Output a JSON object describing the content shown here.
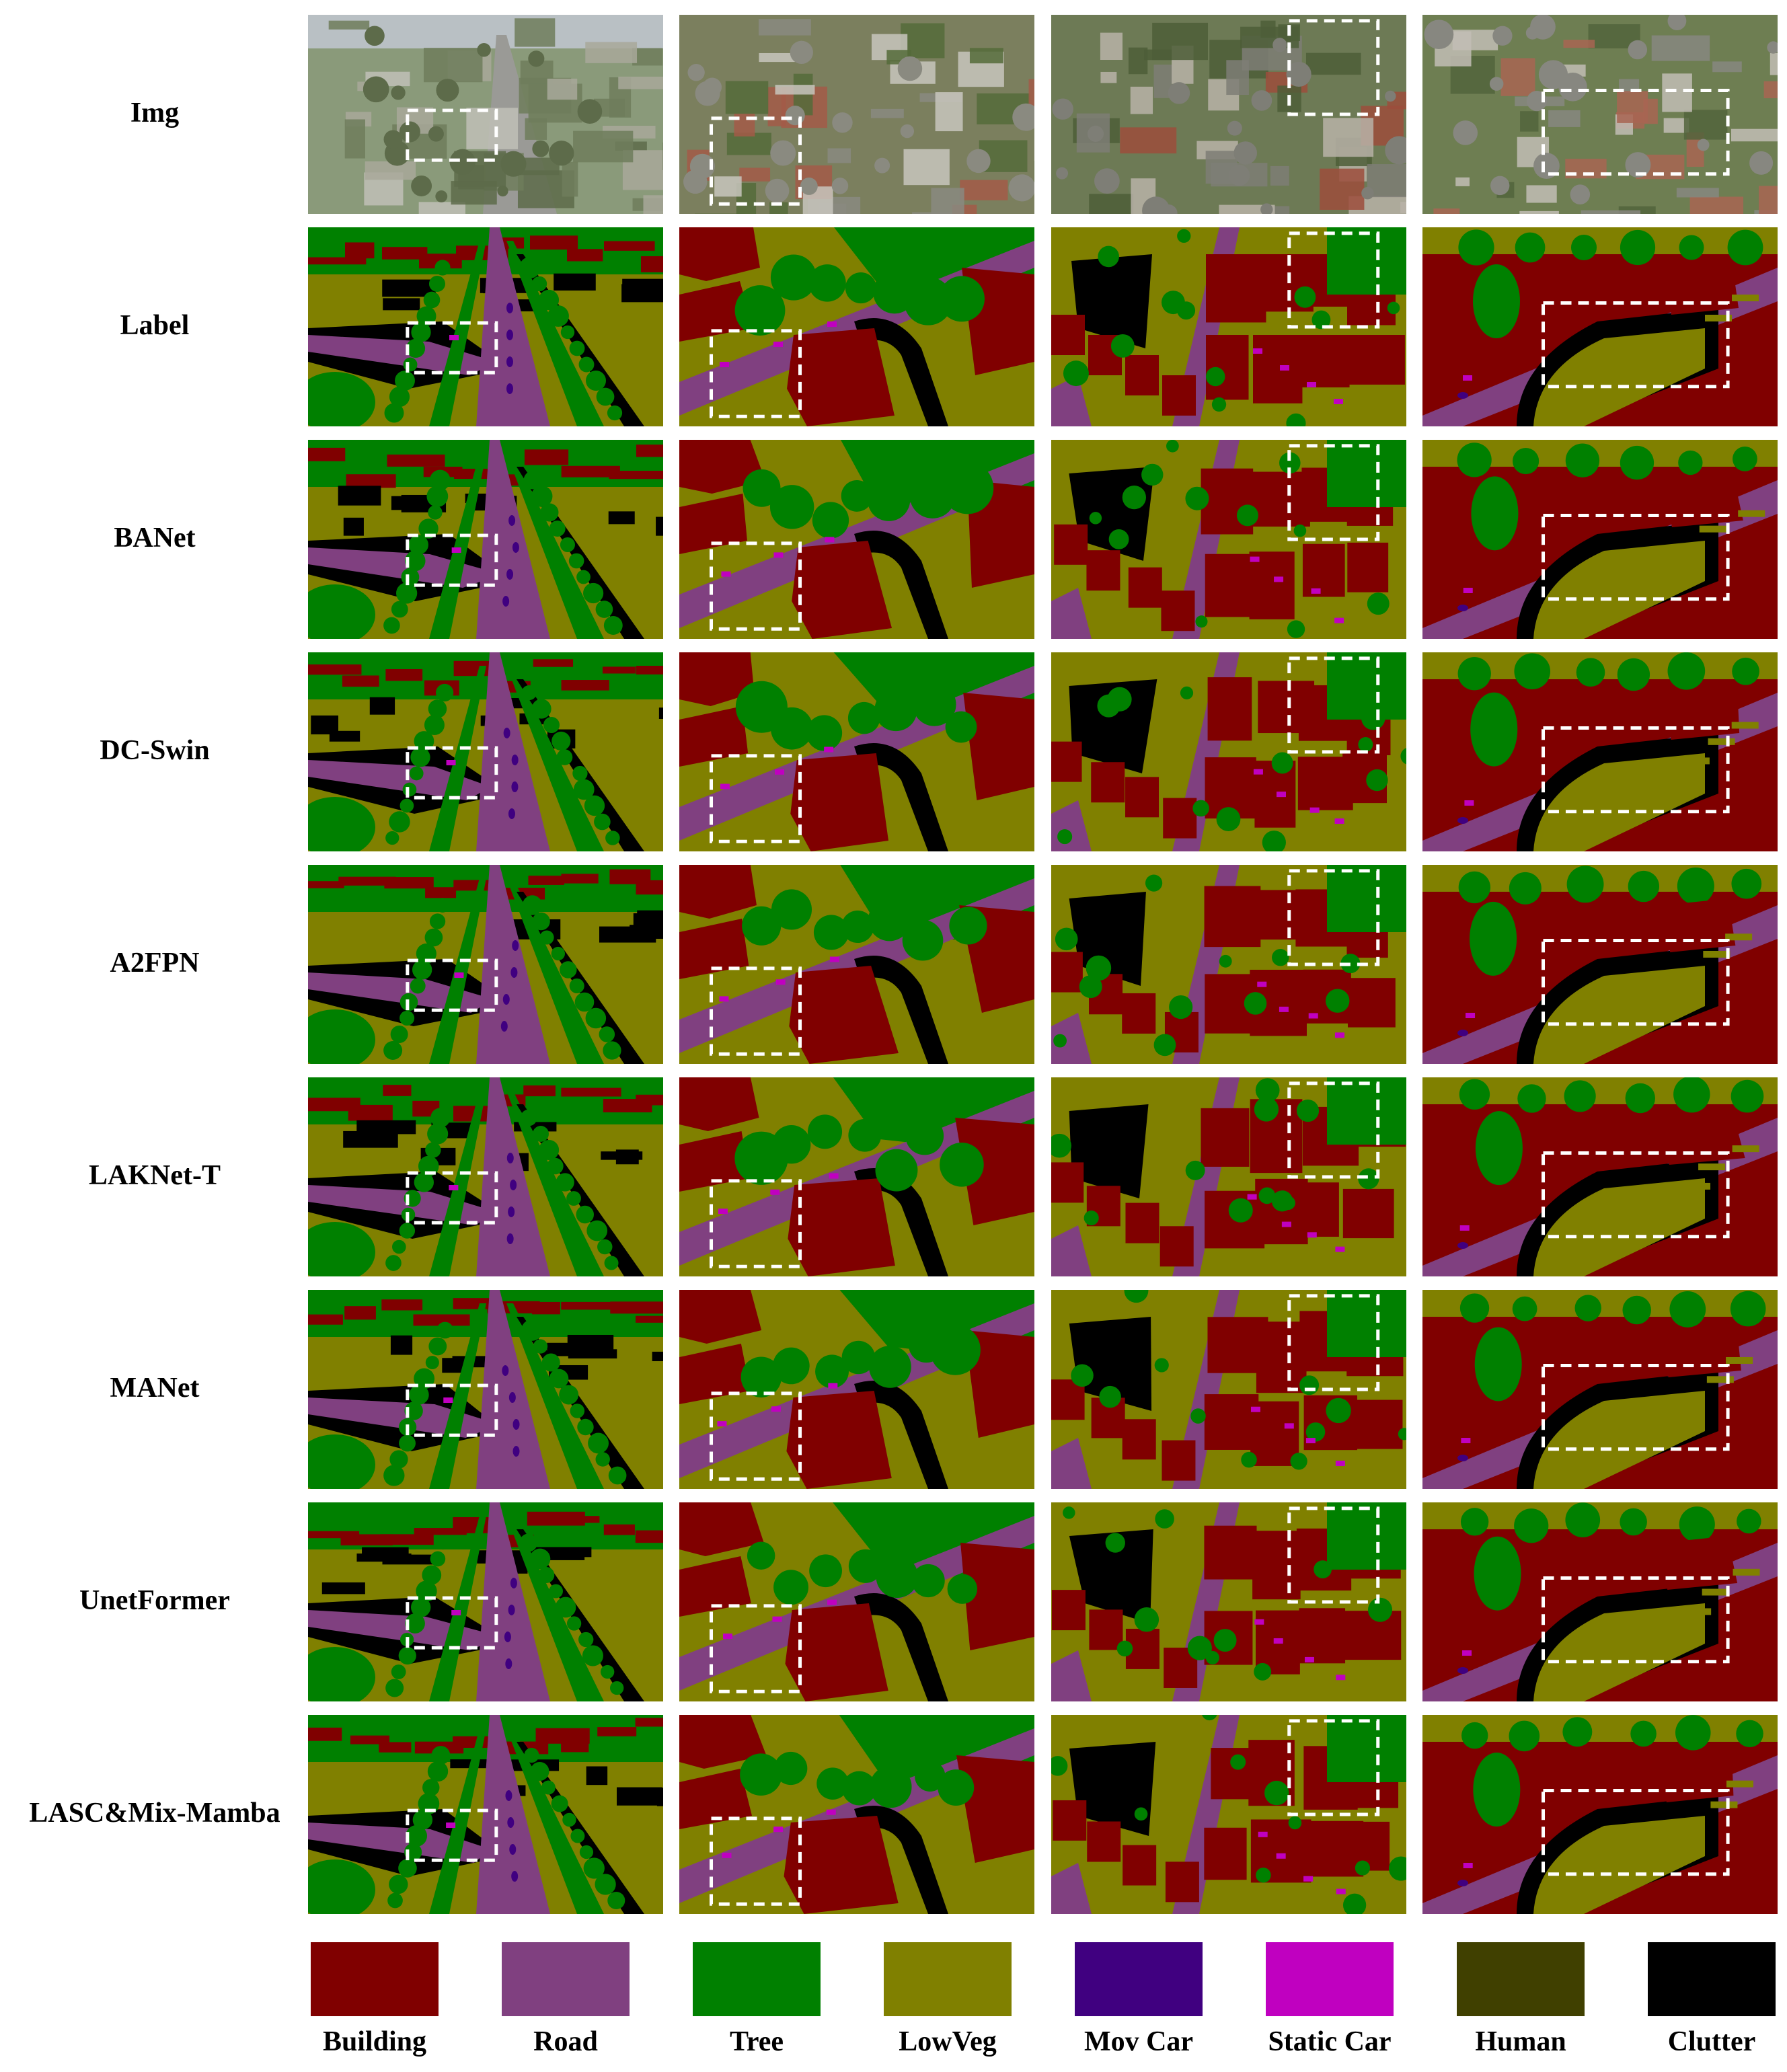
{
  "rows": [
    {
      "label": "Img",
      "type": "photo"
    },
    {
      "label": "Label",
      "type": "segmentation"
    },
    {
      "label": "BANet",
      "type": "segmentation"
    },
    {
      "label": "DC-Swin",
      "type": "segmentation"
    },
    {
      "label": "A2FPN",
      "type": "segmentation"
    },
    {
      "label": "LAKNet-T",
      "type": "segmentation"
    },
    {
      "label": "MANet",
      "type": "segmentation"
    },
    {
      "label": "UnetFormer",
      "type": "segmentation"
    },
    {
      "label": "LASC&Mix-Mamba",
      "type": "segmentation"
    }
  ],
  "legend": [
    {
      "name": "Building",
      "color": "#800000"
    },
    {
      "name": "Road",
      "color": "#804080"
    },
    {
      "name": "Tree",
      "color": "#008000"
    },
    {
      "name": "LowVeg",
      "color": "#808000"
    },
    {
      "name": "Mov Car",
      "color": "#400080"
    },
    {
      "name": "Static Car",
      "color": "#c000c0"
    },
    {
      "name": "Human",
      "color": "#404000"
    },
    {
      "name": "Clutter",
      "color": "#000000"
    }
  ]
}
